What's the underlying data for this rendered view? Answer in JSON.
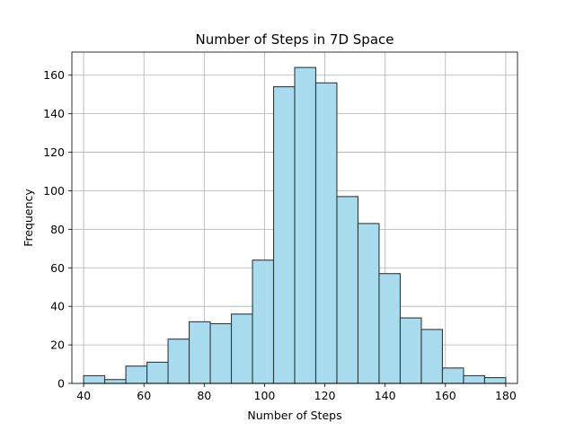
{
  "chart_data": {
    "type": "bar",
    "title": "Number of Steps in 7D Space",
    "xlabel": "Number of Steps",
    "ylabel": "Frequency",
    "xlim": [
      36.1,
      183.9
    ],
    "ylim": [
      0,
      172
    ],
    "xticks": [
      40,
      60,
      80,
      100,
      120,
      140,
      160,
      180
    ],
    "yticks": [
      0,
      20,
      40,
      60,
      80,
      100,
      120,
      140,
      160
    ],
    "grid": true,
    "bar_color": "#a8dbee",
    "edge_color": "#2f3a3e",
    "bins": [
      {
        "start": 40.0,
        "end": 47.0,
        "value": 4
      },
      {
        "start": 47.0,
        "end": 54.0,
        "value": 2
      },
      {
        "start": 54.0,
        "end": 61.0,
        "value": 9
      },
      {
        "start": 61.0,
        "end": 68.0,
        "value": 11
      },
      {
        "start": 68.0,
        "end": 75.0,
        "value": 23
      },
      {
        "start": 75.0,
        "end": 82.0,
        "value": 32
      },
      {
        "start": 82.0,
        "end": 89.0,
        "value": 31
      },
      {
        "start": 89.0,
        "end": 96.0,
        "value": 36
      },
      {
        "start": 96.0,
        "end": 103.0,
        "value": 64
      },
      {
        "start": 103.0,
        "end": 110.0,
        "value": 154
      },
      {
        "start": 110.0,
        "end": 117.0,
        "value": 164
      },
      {
        "start": 117.0,
        "end": 124.0,
        "value": 156
      },
      {
        "start": 124.0,
        "end": 131.0,
        "value": 97
      },
      {
        "start": 131.0,
        "end": 138.0,
        "value": 83
      },
      {
        "start": 138.0,
        "end": 145.0,
        "value": 57
      },
      {
        "start": 145.0,
        "end": 152.0,
        "value": 34
      },
      {
        "start": 152.0,
        "end": 159.0,
        "value": 28
      },
      {
        "start": 159.0,
        "end": 166.0,
        "value": 8
      },
      {
        "start": 166.0,
        "end": 173.0,
        "value": 4
      },
      {
        "start": 173.0,
        "end": 180.0,
        "value": 3
      }
    ]
  }
}
